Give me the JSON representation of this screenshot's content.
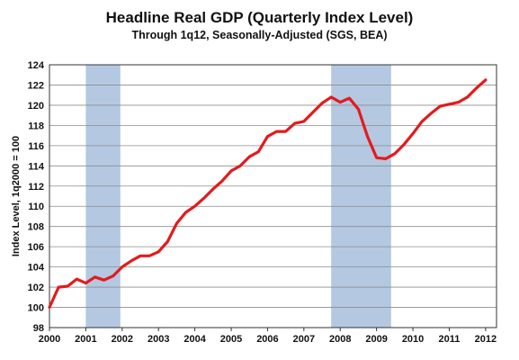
{
  "chart_data": {
    "type": "line",
    "title": "Headline Real GDP (Quarterly Index Level)",
    "subtitle": "Through 1q12, Seasonally-Adjusted (SGS, BEA)",
    "xlabel": "",
    "ylabel": "Index Level, 1q2000 = 100",
    "ylim": [
      98,
      124
    ],
    "yticks": [
      98,
      100,
      102,
      104,
      106,
      108,
      110,
      112,
      114,
      116,
      118,
      120,
      122,
      124
    ],
    "xticks": [
      "2000",
      "2001",
      "2002",
      "2003",
      "2004",
      "2005",
      "2006",
      "2007",
      "2008",
      "2009",
      "2010",
      "2011",
      "2012"
    ],
    "grid": "horizontal",
    "recessions": [
      {
        "start": 2001.0,
        "end": 2001.95
      },
      {
        "start": 2007.75,
        "end": 2009.4
      }
    ],
    "line_color": "#e41a1c",
    "recession_color": "#b4c8e2",
    "series": [
      {
        "x": [
          2000.0,
          2000.25,
          2000.5,
          2000.75,
          2001.0,
          2001.25,
          2001.5,
          2001.75,
          2002.0,
          2002.25,
          2002.5,
          2002.75,
          2003.0,
          2003.25,
          2003.5,
          2003.75,
          2004.0,
          2004.25,
          2004.5,
          2004.75,
          2005.0,
          2005.25,
          2005.5,
          2005.75,
          2006.0,
          2006.25,
          2006.5,
          2006.75,
          2007.0,
          2007.25,
          2007.5,
          2007.75,
          2008.0,
          2008.25,
          2008.5,
          2008.75,
          2009.0,
          2009.25,
          2009.5,
          2009.75,
          2010.0,
          2010.25,
          2010.5,
          2010.75,
          2011.0,
          2011.25,
          2011.5,
          2011.75,
          2012.0
        ],
        "values": [
          100.0,
          102.0,
          102.1,
          102.8,
          102.4,
          103.0,
          102.7,
          103.1,
          104.0,
          104.6,
          105.1,
          105.1,
          105.5,
          106.5,
          108.3,
          109.4,
          110.0,
          110.8,
          111.7,
          112.5,
          113.5,
          114.0,
          114.9,
          115.4,
          116.9,
          117.4,
          117.4,
          118.2,
          118.4,
          119.3,
          120.2,
          120.8,
          120.3,
          120.7,
          119.6,
          116.9,
          114.8,
          114.7,
          115.2,
          116.1,
          117.2,
          118.4,
          119.2,
          119.9,
          120.1,
          120.3,
          120.8,
          121.7,
          122.5
        ]
      }
    ]
  }
}
